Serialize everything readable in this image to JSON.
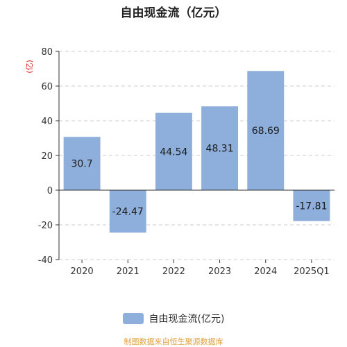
{
  "chart_data": {
    "type": "bar",
    "title": "自由现金流（亿元）",
    "ylabel": "亿元",
    "ylabel_display": "(亿)",
    "categories": [
      "2020",
      "2021",
      "2022",
      "2023",
      "2024",
      "2025Q1"
    ],
    "series": [
      {
        "name": "自由现金流(亿元)",
        "values": [
          30.7,
          -24.47,
          44.54,
          48.31,
          68.69,
          -17.81
        ],
        "labels": [
          "30.7",
          "-24.47",
          "44.54",
          "48.31",
          "68.69",
          "-17.81"
        ]
      }
    ],
    "ylim": [
      -40,
      80
    ],
    "yticks": [
      80,
      60,
      40,
      20,
      0,
      -20,
      -40
    ],
    "grid": true,
    "legend_position": "bottom"
  },
  "colors": {
    "bar": "#8eafdb",
    "grid": "#cccccc",
    "axis": "#333333",
    "ylabel": "#e02020"
  },
  "source": "制图数据来自恒生聚源数据库"
}
